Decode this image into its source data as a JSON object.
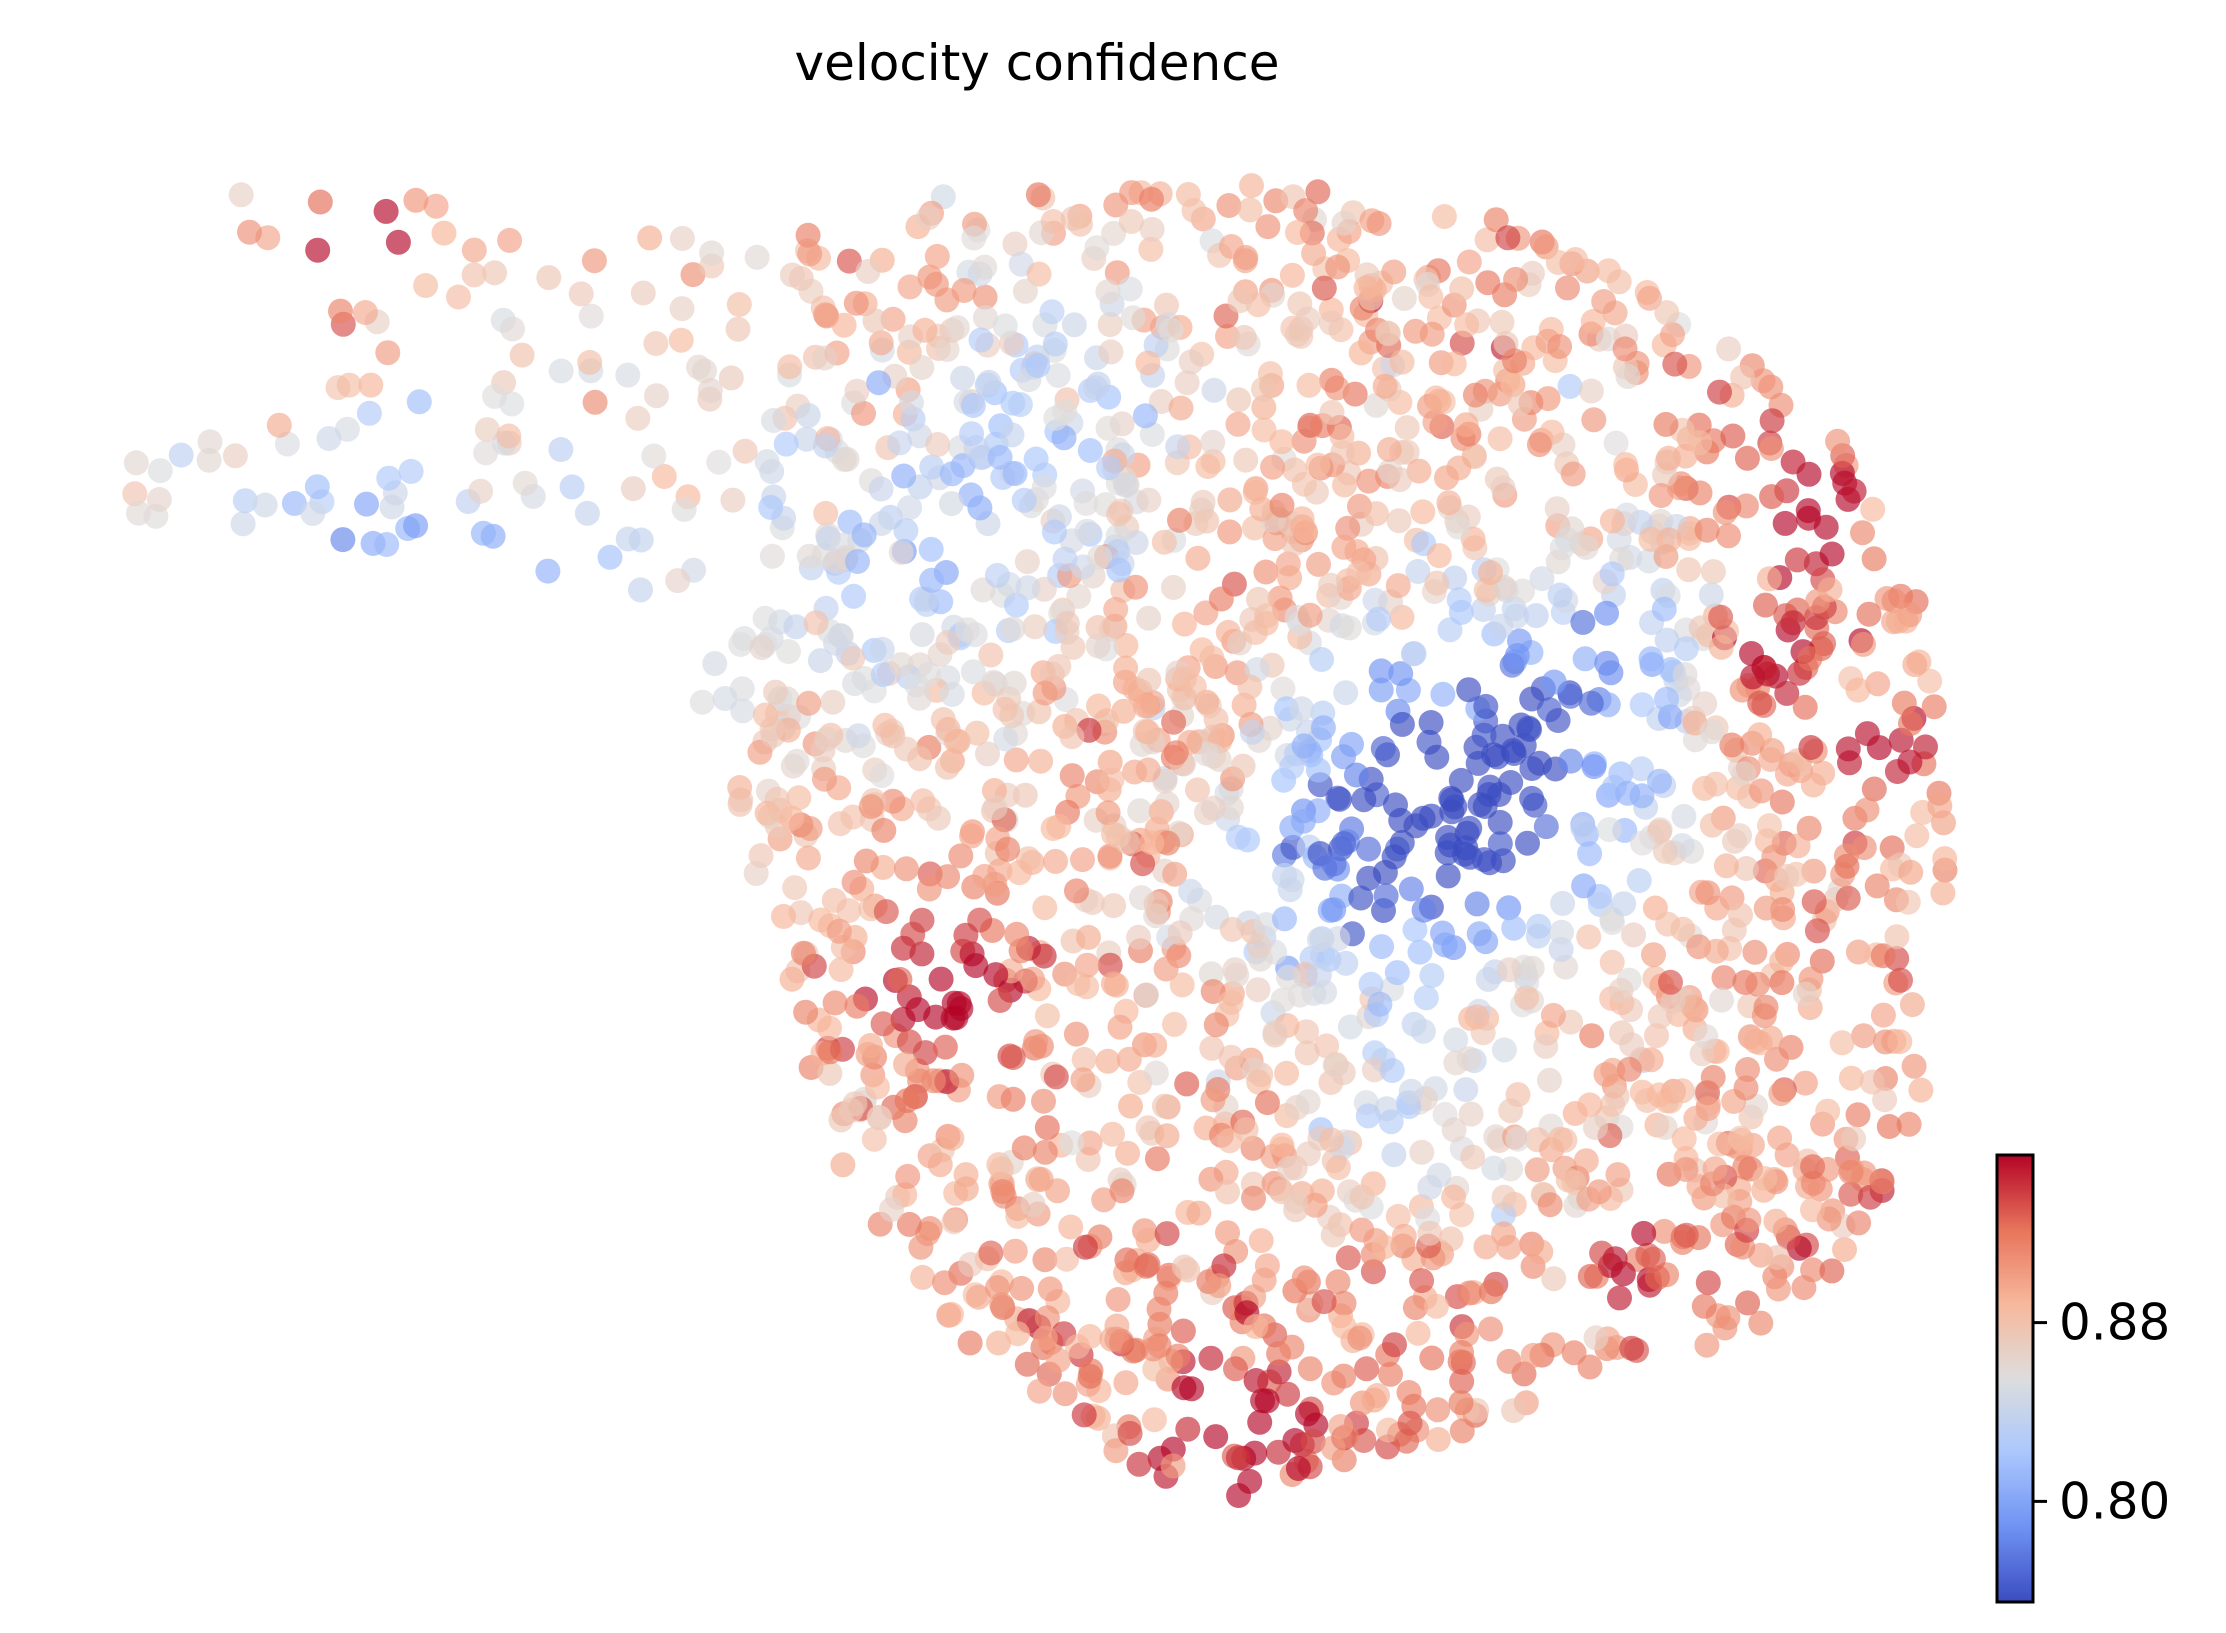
{
  "chart_data": {
    "type": "scatter",
    "title": "velocity confidence",
    "xlabel": "",
    "ylabel": "",
    "axes_visible": false,
    "grid": false,
    "colormap": "coolwarm",
    "color_stops": [
      "#3b4cc0",
      "#6f92f3",
      "#aac7fd",
      "#dddddd",
      "#f7b89c",
      "#e7745b",
      "#b40426"
    ],
    "colorbar": {
      "placement": "bottom-right",
      "range": [
        0.755,
        0.955
      ],
      "ticks": [
        0.8,
        0.88
      ],
      "tick_labels": [
        "0.80",
        "0.88"
      ]
    },
    "point_count": 2400,
    "point_opacity": 0.65,
    "value_range": [
      0.755,
      0.955
    ]
  }
}
